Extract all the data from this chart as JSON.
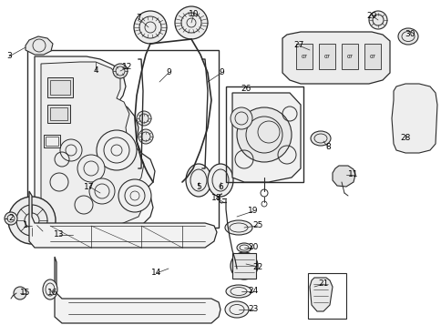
{
  "bg_color": "#ffffff",
  "lc": "#2a2a2a",
  "tc": "#000000",
  "figsize": [
    4.85,
    3.57
  ],
  "dpi": 100,
  "img_xlim": [
    0,
    485
  ],
  "img_ylim": [
    0,
    357
  ]
}
